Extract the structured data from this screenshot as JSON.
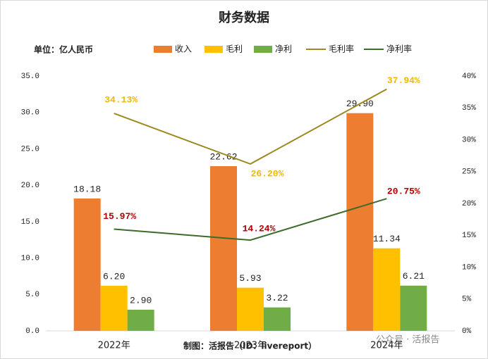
{
  "chart_data": {
    "type": "bar-line",
    "title": "财务数据",
    "unit_label": "单位：亿人民币",
    "footer": "制图：活报告（ID：livereport）",
    "watermark": "公众号 · 活报告",
    "categories": [
      "2022年",
      "2023年",
      "2024年"
    ],
    "series": [
      {
        "name": "收入",
        "type": "bar",
        "color": "#ed7d31",
        "values": [
          18.18,
          22.62,
          29.9
        ],
        "value_labels": [
          "18.18",
          "22.62",
          "29.90"
        ]
      },
      {
        "name": "毛利",
        "type": "bar",
        "color": "#ffc000",
        "values": [
          6.2,
          5.93,
          11.34
        ],
        "value_labels": [
          "6.20",
          "5.93",
          "11.34"
        ]
      },
      {
        "name": "净利",
        "type": "bar",
        "color": "#70ad47",
        "values": [
          2.9,
          3.22,
          6.21
        ],
        "value_labels": [
          "2.90",
          "3.22",
          "6.21"
        ]
      },
      {
        "name": "毛利率",
        "type": "line",
        "axis": "y2",
        "color": "#9c8a1f",
        "label_color": "#f0b800",
        "values": [
          34.13,
          26.2,
          37.94
        ],
        "value_labels": [
          "34.13%",
          "26.20%",
          "37.94%"
        ]
      },
      {
        "name": "净利率",
        "type": "line",
        "axis": "y2",
        "color": "#3d6b2a",
        "label_color": "#b00000",
        "values": [
          15.97,
          14.24,
          20.75
        ],
        "value_labels": [
          "15.97%",
          "14.24%",
          "20.75%"
        ]
      }
    ],
    "ylim": [
      0,
      35
    ],
    "yticks": [
      {
        "value": 0,
        "label": "0.0"
      },
      {
        "value": 5,
        "label": "5.0"
      },
      {
        "value": 10,
        "label": "10.0"
      },
      {
        "value": 15,
        "label": "15.0"
      },
      {
        "value": 20,
        "label": "20.0"
      },
      {
        "value": 25,
        "label": "25.0"
      },
      {
        "value": 30,
        "label": "30.0"
      },
      {
        "value": 35,
        "label": "35.0"
      }
    ],
    "y2lim": [
      0,
      40
    ],
    "y2ticks": [
      {
        "value": 0,
        "label": "0%"
      },
      {
        "value": 5,
        "label": "5%"
      },
      {
        "value": 10,
        "label": "10%"
      },
      {
        "value": 15,
        "label": "15%"
      },
      {
        "value": 20,
        "label": "20%"
      },
      {
        "value": 25,
        "label": "25%"
      },
      {
        "value": 30,
        "label": "30%"
      },
      {
        "value": 35,
        "label": "35%"
      },
      {
        "value": 40,
        "label": "40%"
      }
    ],
    "grid": false
  }
}
